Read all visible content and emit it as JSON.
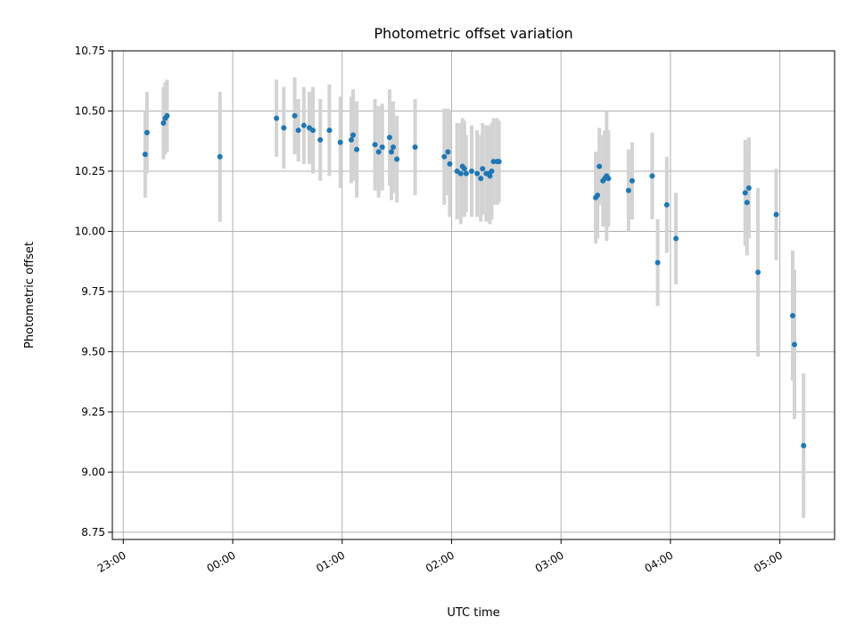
{
  "chart_data": {
    "type": "scatter",
    "title": "Photometric offset variation",
    "xlabel": "UTC time",
    "ylabel": "Photometric offset",
    "grid": true,
    "legend": "none",
    "xlim": [
      "22:54",
      "05:30"
    ],
    "ylim": [
      8.72,
      10.75
    ],
    "x_ticks": [
      "23:00",
      "00:00",
      "01:00",
      "02:00",
      "03:00",
      "04:00",
      "05:00"
    ],
    "y_ticks": [
      "8.75",
      "9.00",
      "9.25",
      "9.50",
      "9.75",
      "10.00",
      "10.25",
      "10.50",
      "10.75"
    ],
    "colors": {
      "point": "#1f77b4",
      "errorbar": "#d3d3d3",
      "grid": "#b0b0b0"
    },
    "series": [
      {
        "x": [
          "23:12",
          "23:13",
          "23:22",
          "23:23",
          "23:24",
          "23:53",
          "00:24",
          "00:28",
          "00:34",
          "00:36",
          "00:39",
          "00:42",
          "00:44",
          "00:48",
          "00:53",
          "00:59",
          "01:05",
          "01:06",
          "01:08",
          "01:18",
          "01:20",
          "01:22",
          "01:26",
          "01:27",
          "01:28",
          "01:30",
          "01:40",
          "01:56",
          "01:58",
          "01:59",
          "02:03",
          "02:05",
          "02:06",
          "02:07",
          "02:08",
          "02:11",
          "02:14",
          "02:16",
          "02:17",
          "02:19",
          "02:20",
          "02:21",
          "02:22",
          "02:23",
          "02:25",
          "02:26",
          "03:19",
          "03:20",
          "03:21",
          "03:23",
          "03:24",
          "03:25",
          "03:26",
          "03:37",
          "03:39",
          "03:50",
          "03:53",
          "03:58",
          "04:03",
          "04:41",
          "04:42",
          "04:43",
          "04:48",
          "04:58",
          "05:07",
          "05:08",
          "05:13"
        ],
        "y": [
          10.32,
          10.41,
          10.45,
          10.47,
          10.48,
          10.31,
          10.47,
          10.43,
          10.48,
          10.42,
          10.44,
          10.43,
          10.42,
          10.38,
          10.42,
          10.37,
          10.38,
          10.4,
          10.34,
          10.36,
          10.33,
          10.35,
          10.39,
          10.33,
          10.35,
          10.3,
          10.35,
          10.31,
          10.33,
          10.28,
          10.25,
          10.24,
          10.27,
          10.26,
          10.24,
          10.25,
          10.24,
          10.22,
          10.26,
          10.24,
          10.24,
          10.23,
          10.25,
          10.29,
          10.29,
          10.29,
          10.14,
          10.15,
          10.27,
          10.21,
          10.22,
          10.23,
          10.22,
          10.17,
          10.21,
          10.23,
          9.87,
          10.11,
          9.97,
          10.16,
          10.12,
          10.18,
          9.83,
          10.07,
          9.65,
          9.53,
          9.11
        ],
        "yerr": [
          0.18,
          0.17,
          0.15,
          0.15,
          0.15,
          0.27,
          0.16,
          0.17,
          0.16,
          0.13,
          0.16,
          0.15,
          0.18,
          0.17,
          0.19,
          0.19,
          0.18,
          0.19,
          0.2,
          0.19,
          0.19,
          0.18,
          0.2,
          0.2,
          0.19,
          0.18,
          0.2,
          0.2,
          0.18,
          0.22,
          0.2,
          0.21,
          0.2,
          0.2,
          0.16,
          0.19,
          0.18,
          0.18,
          0.19,
          0.2,
          0.2,
          0.2,
          0.2,
          0.18,
          0.18,
          0.17,
          0.19,
          0.18,
          0.16,
          0.19,
          0.2,
          0.27,
          0.2,
          0.17,
          0.16,
          0.18,
          0.18,
          0.2,
          0.19,
          0.22,
          0.22,
          0.21,
          0.35,
          0.19,
          0.27,
          0.31,
          0.3
        ]
      }
    ]
  }
}
